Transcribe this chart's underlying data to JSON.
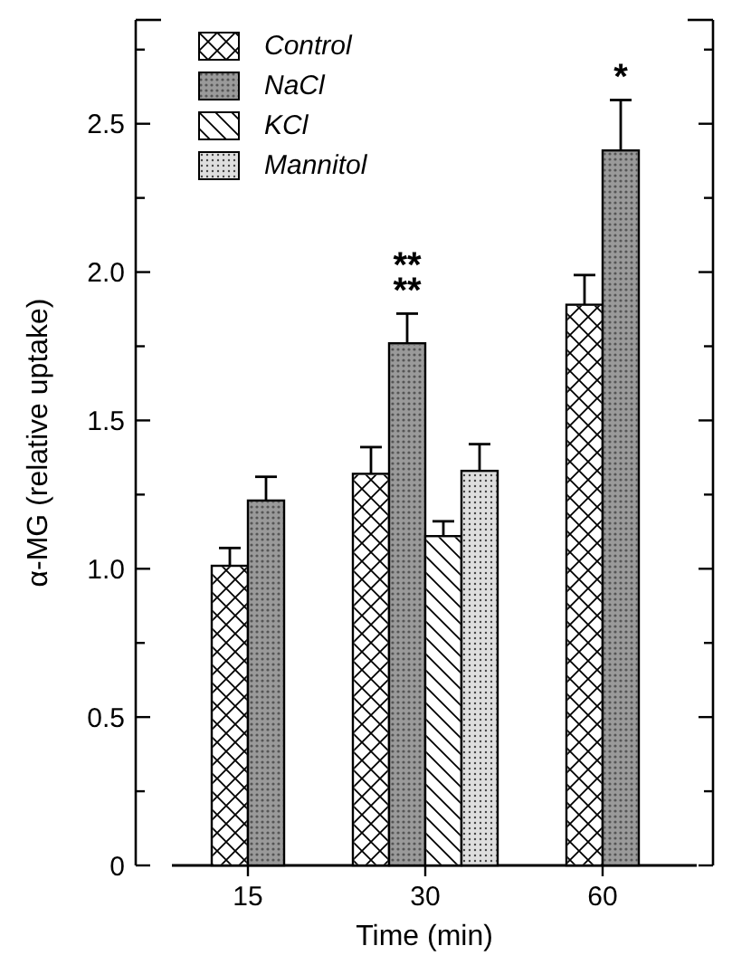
{
  "chart_data": {
    "type": "bar",
    "xlabel": "Time (min)",
    "ylabel": "α-MG  (relative uptake)",
    "categories": [
      "15",
      "30",
      "60"
    ],
    "series": [
      {
        "name": "Control",
        "color": "#ffffff",
        "values": [
          1.01,
          1.32,
          1.89
        ],
        "errors": [
          0.06,
          0.09,
          0.1
        ]
      },
      {
        "name": "NaCl",
        "color": "#9a9a9a",
        "values": [
          1.23,
          1.76,
          2.41
        ],
        "errors": [
          0.08,
          0.1,
          0.17
        ]
      },
      {
        "name": "KCl",
        "color": "#ffffff",
        "values": [
          null,
          1.11,
          null
        ],
        "errors": [
          null,
          0.05,
          null
        ]
      },
      {
        "name": "Mannitol",
        "color": "#dedede",
        "values": [
          null,
          1.33,
          null
        ],
        "errors": [
          null,
          0.09,
          null
        ]
      }
    ],
    "ylim": [
      0,
      2.85
    ],
    "yticks": [
      {
        "value": 0,
        "label": "0"
      },
      {
        "value": 0.25,
        "label": null
      },
      {
        "value": 0.5,
        "label": "0.5"
      },
      {
        "value": 0.75,
        "label": null
      },
      {
        "value": 1,
        "label": "1.0"
      },
      {
        "value": 1.25,
        "label": null
      },
      {
        "value": 1.5,
        "label": "1.5"
      },
      {
        "value": 1.75,
        "label": null
      },
      {
        "value": 2,
        "label": "2.0"
      },
      {
        "value": 2.25,
        "label": null
      },
      {
        "value": 2.5,
        "label": "2.5"
      },
      {
        "value": 2.75,
        "label": null
      }
    ],
    "legend": "top left",
    "grid": false,
    "annotations": [
      {
        "text": "**",
        "x": "30",
        "y": 1.76
      },
      {
        "text": "**",
        "x": "30",
        "y": 1.76
      },
      {
        "text": "*",
        "x": "60",
        "y": 2.41
      }
    ]
  }
}
